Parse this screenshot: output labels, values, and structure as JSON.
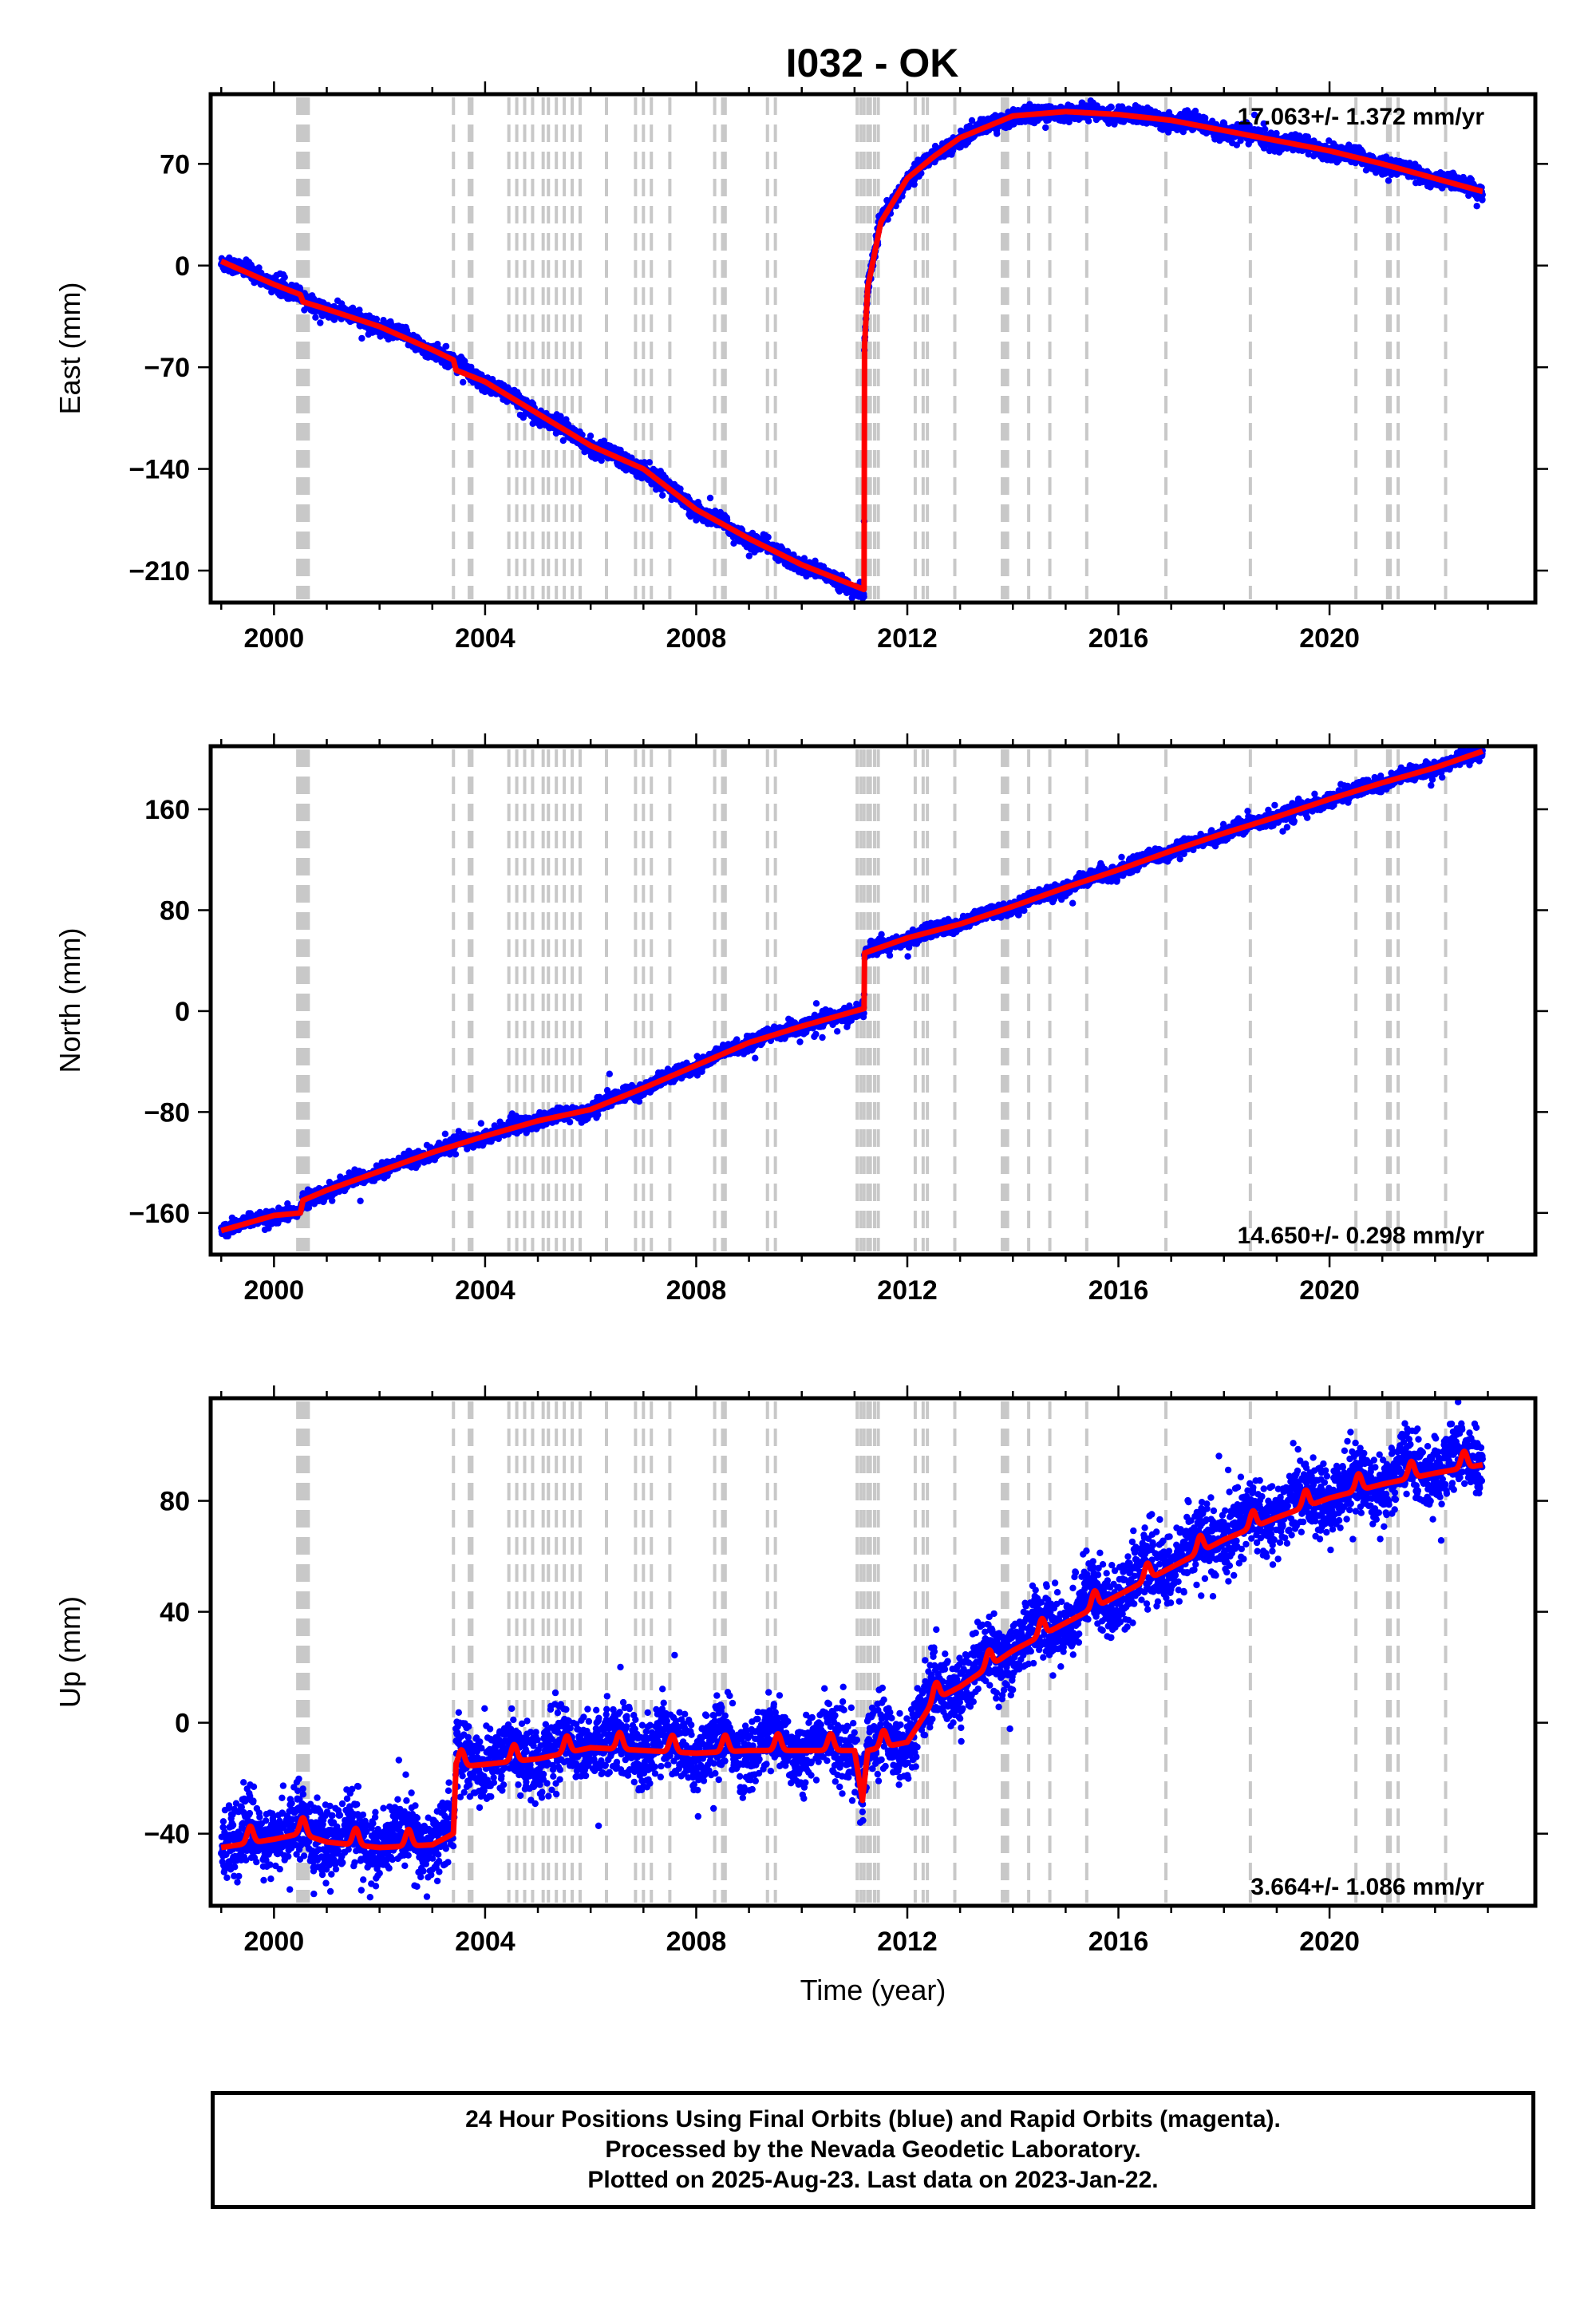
{
  "title": "I032 - OK",
  "chart_data": [
    {
      "type": "scatter",
      "panel": "east",
      "ylabel": "East (mm)",
      "xlabel": "",
      "rate_label": "17.063+/- 1.372 mm/yr",
      "rate_position": "top-right",
      "xlim": [
        1998.8,
        2023.9
      ],
      "ylim": [
        -232,
        118
      ],
      "xticks": [
        2000,
        2004,
        2008,
        2012,
        2016,
        2020
      ],
      "yticks": [
        70,
        0,
        -70,
        -140,
        -210
      ],
      "ytick_labels": [
        "70",
        "0",
        "−70",
        "−140",
        "−210"
      ],
      "grid": false,
      "series": [
        {
          "role": "daily positions (blue points)",
          "color": "#0000ff",
          "noise_mm": 2.5,
          "seasonal_mm": 1.5,
          "x": [
            1999.0,
            2000.0,
            2000.5,
            2001.0,
            2002.0,
            2003.0,
            2004.0,
            2005.0,
            2006.0,
            2007.0,
            2008.0,
            2009.0,
            2010.0,
            2011.18,
            2011.185,
            2011.25,
            2011.5,
            2012.0,
            2012.5,
            2013.0,
            2014.0,
            2015.0,
            2016.0,
            2017.0,
            2018.0,
            2019.0,
            2020.0,
            2021.0,
            2022.0,
            2022.9
          ],
          "y": [
            3,
            -12,
            -22,
            -30,
            -42,
            -58,
            -80,
            -102,
            -124,
            -140,
            -168,
            -188,
            -206,
            -225,
            -58,
            -15,
            30,
            60,
            75,
            88,
            103,
            106,
            104,
            100,
            93,
            86,
            79,
            70,
            60,
            51
          ]
        },
        {
          "role": "model fit (red line)",
          "color": "#ff0000",
          "x": [
            1999.0,
            2000.0,
            2000.5,
            2000.55,
            2001.0,
            2002.0,
            2003.0,
            2003.4,
            2003.45,
            2004.0,
            2005.0,
            2006.0,
            2007.0,
            2008.0,
            2009.0,
            2010.0,
            2011.18,
            2011.185,
            2011.25,
            2011.5,
            2012.0,
            2012.5,
            2013.0,
            2014.0,
            2015.0,
            2016.0,
            2017.0,
            2018.0,
            2019.0,
            2020.0,
            2021.0,
            2022.0,
            2022.9
          ],
          "y": [
            3,
            -13,
            -20,
            -25,
            -30,
            -42,
            -58,
            -65,
            -72,
            -80,
            -102,
            -124,
            -140,
            -168,
            -188,
            -206,
            -223,
            -58,
            -15,
            30,
            60,
            75,
            88,
            103,
            106,
            104,
            100,
            93,
            86,
            79,
            70,
            60,
            51
          ]
        }
      ]
    },
    {
      "type": "scatter",
      "panel": "north",
      "ylabel": "North (mm)",
      "xlabel": "",
      "rate_label": "14.650+/- 0.298 mm/yr",
      "rate_position": "bottom-right",
      "xlim": [
        1998.8,
        2023.9
      ],
      "ylim": [
        -193,
        210
      ],
      "xticks": [
        2000,
        2004,
        2008,
        2012,
        2016,
        2020
      ],
      "yticks": [
        160,
        80,
        0,
        -80,
        -160
      ],
      "ytick_labels": [
        "160",
        "80",
        "0",
        "−80",
        "−160"
      ],
      "grid": false,
      "series": [
        {
          "role": "daily positions (blue points)",
          "color": "#0000ff",
          "noise_mm": 2.5,
          "seasonal_mm": 1.5,
          "x": [
            1999.0,
            2000.0,
            2000.5,
            2000.55,
            2001.0,
            2002.0,
            2003.0,
            2004.0,
            2005.0,
            2006.0,
            2007.0,
            2008.0,
            2009.0,
            2010.0,
            2011.18,
            2011.185,
            2012.0,
            2013.0,
            2014.0,
            2015.0,
            2016.0,
            2017.0,
            2018.0,
            2019.0,
            2020.0,
            2021.0,
            2022.0,
            2022.9
          ],
          "y": [
            -174,
            -162,
            -160,
            -150,
            -142,
            -127,
            -112,
            -99,
            -87,
            -78,
            -61,
            -43,
            -25,
            -12,
            2,
            46,
            58,
            69,
            83,
            98,
            112,
            127,
            141,
            154,
            168,
            181,
            193,
            206
          ]
        },
        {
          "role": "model fit (red line)",
          "color": "#ff0000",
          "x": [
            1999.0,
            2000.0,
            2000.5,
            2000.55,
            2001.0,
            2002.0,
            2003.0,
            2004.0,
            2005.0,
            2006.0,
            2007.0,
            2008.0,
            2009.0,
            2010.0,
            2011.18,
            2011.185,
            2012.0,
            2013.0,
            2014.0,
            2015.0,
            2016.0,
            2017.0,
            2018.0,
            2019.0,
            2020.0,
            2021.0,
            2022.0,
            2022.9
          ],
          "y": [
            -174,
            -162,
            -160,
            -150,
            -142,
            -127,
            -112,
            -99,
            -87,
            -78,
            -61,
            -43,
            -25,
            -12,
            2,
            46,
            58,
            69,
            83,
            98,
            112,
            127,
            141,
            154,
            168,
            181,
            193,
            206
          ]
        }
      ]
    },
    {
      "type": "scatter",
      "panel": "up",
      "ylabel": "Up (mm)",
      "xlabel": "Time (year)",
      "rate_label": "3.664+/- 1.086 mm/yr",
      "rate_position": "bottom-right",
      "xlim": [
        1998.8,
        2023.9
      ],
      "ylim": [
        -66,
        117
      ],
      "xticks": [
        2000,
        2004,
        2008,
        2012,
        2016,
        2020
      ],
      "yticks": [
        80,
        40,
        0,
        -40
      ],
      "ytick_labels": [
        "80",
        "40",
        "0",
        "−40"
      ],
      "grid": false,
      "series": [
        {
          "role": "daily positions (blue points)",
          "color": "#0000ff",
          "noise_mm": 6,
          "seasonal_mm": 4,
          "x": [
            1999.0,
            2000.0,
            2000.5,
            2001.0,
            2002.0,
            2003.0,
            2003.4,
            2003.45,
            2004.0,
            2005.0,
            2006.0,
            2007.0,
            2008.0,
            2009.0,
            2010.0,
            2011.0,
            2011.15,
            2011.25,
            2011.5,
            2012.0,
            2012.5,
            2013.0,
            2014.0,
            2015.0,
            2016.0,
            2017.0,
            2018.0,
            2019.0,
            2020.0,
            2021.0,
            2022.0,
            2022.9
          ],
          "y": [
            -43,
            -40,
            -38,
            -41,
            -43,
            -42,
            -38,
            -14,
            -13,
            -11,
            -7,
            -8,
            -9,
            -8,
            -8,
            -8,
            -26,
            -8,
            -7,
            -5,
            10,
            15,
            28,
            38,
            48,
            58,
            68,
            76,
            83,
            88,
            92,
            95
          ]
        },
        {
          "role": "model fit (red line)",
          "color": "#ff0000",
          "x": [
            1999.0,
            2000.0,
            2000.5,
            2001.0,
            2002.0,
            2003.0,
            2003.4,
            2003.45,
            2004.0,
            2005.0,
            2006.0,
            2007.0,
            2008.0,
            2009.0,
            2010.0,
            2011.0,
            2011.15,
            2011.25,
            2011.5,
            2012.0,
            2012.5,
            2013.0,
            2014.0,
            2015.0,
            2016.0,
            2017.0,
            2018.0,
            2019.0,
            2020.0,
            2021.0,
            2022.0,
            2022.9
          ],
          "y": [
            -43,
            -40,
            -38,
            -41,
            -43,
            -42,
            -38,
            -14,
            -13,
            -11,
            -7,
            -8,
            -9,
            -8,
            -8,
            -8,
            -26,
            -8,
            -7,
            -5,
            10,
            15,
            28,
            38,
            48,
            58,
            68,
            76,
            83,
            88,
            92,
            95
          ]
        }
      ]
    }
  ],
  "event_lines": [
    2000.45,
    2000.5,
    2000.55,
    2000.6,
    2000.65,
    2003.4,
    2003.7,
    2003.75,
    2004.45,
    2004.6,
    2004.75,
    2004.9,
    2005.1,
    2005.2,
    2005.35,
    2005.5,
    2005.65,
    2005.8,
    2006.3,
    2006.85,
    2007.0,
    2007.15,
    2007.5,
    2008.35,
    2008.5,
    2008.55,
    2009.35,
    2009.5,
    2011.05,
    2011.12,
    2011.18,
    2011.25,
    2011.3,
    2011.38,
    2011.45,
    2012.15,
    2012.3,
    2012.38,
    2012.9,
    2013.8,
    2013.85,
    2013.9,
    2014.3,
    2014.7,
    2015.4,
    2016.9,
    2018.5,
    2020.5,
    2021.1,
    2021.15,
    2021.3,
    2022.2
  ],
  "event_line_color": "#c8c8c8",
  "footer": {
    "line1": "24 Hour Positions Using Final Orbits (blue) and Rapid Orbits (magenta).",
    "line2": "Processed by the Nevada Geodetic Laboratory.",
    "line3": "Plotted on 2025-Aug-23. Last data on 2023-Jan-22."
  }
}
